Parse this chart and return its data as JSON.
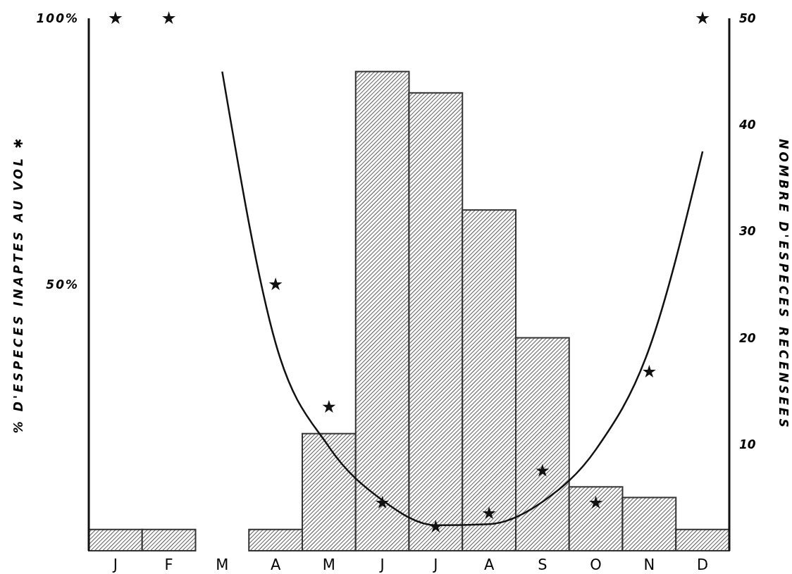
{
  "chart_data": {
    "type": "bar",
    "ylabel": "% D'ESPECES INAPTES AU VOL ✱",
    "y2label": "NOMBRE D'ESPECES RECENSEES",
    "categories": [
      "J",
      "F",
      "M",
      "A",
      "M",
      "J",
      "J",
      "A",
      "S",
      "O",
      "N",
      "D"
    ],
    "ylim": [
      0,
      100
    ],
    "yticks": [
      {
        "value": 50,
        "label": "50%"
      },
      {
        "value": 100,
        "label": "100%"
      }
    ],
    "y2lim": [
      0,
      50
    ],
    "y2ticks": [
      10,
      20,
      30,
      40,
      50
    ],
    "series": [
      {
        "axis": "y2",
        "color": "#333333",
        "values": [
          2,
          2,
          0,
          2,
          11,
          45,
          43,
          32,
          20,
          6,
          5,
          2
        ]
      },
      {
        "type": "scatter",
        "marker": "star",
        "color": "#111111",
        "values": [
          100,
          100,
          null,
          50,
          27,
          9,
          4.5,
          7,
          15,
          9,
          33.6,
          100
        ]
      },
      {
        "type": "line",
        "color": "#111111",
        "values": [
          null,
          null,
          90,
          39,
          19.5,
          9.5,
          4.8,
          5,
          9.2,
          19,
          38,
          75
        ]
      }
    ]
  }
}
